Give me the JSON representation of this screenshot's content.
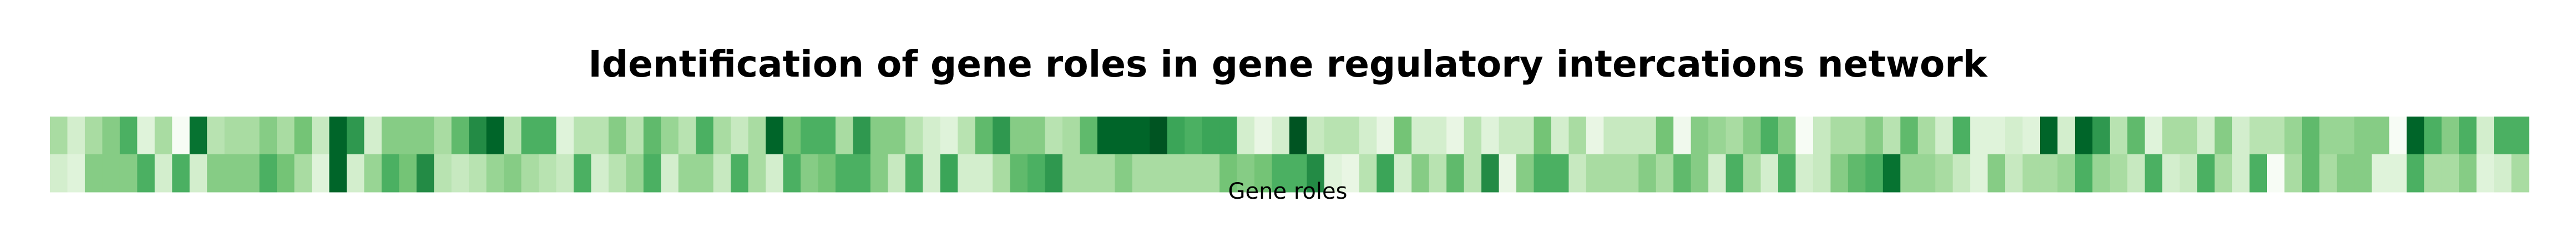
{
  "chart_data": {
    "type": "heatmap",
    "title": "Identification of gene roles in gene regulatory intercations network",
    "xlabel": "Gene roles",
    "ylabel": "",
    "colormap": "Greens",
    "grid": false,
    "legend": "none",
    "value_range": [
      0,
      1
    ],
    "rows": [
      [
        0.35,
        0.2,
        0.35,
        0.45,
        0.6,
        0.15,
        0.35,
        0.0,
        0.85,
        0.3,
        0.35,
        0.35,
        0.45,
        0.35,
        0.5,
        0.25,
        0.9,
        0.7,
        0.2,
        0.45,
        0.45,
        0.45,
        0.35,
        0.55,
        0.75,
        0.9,
        0.3,
        0.6,
        0.6,
        0.15,
        0.3,
        0.3,
        0.45,
        0.3,
        0.55,
        0.4,
        0.3,
        0.6,
        0.35,
        0.25,
        0.35,
        0.9,
        0.5,
        0.6,
        0.6,
        0.35,
        0.7,
        0.45,
        0.45,
        0.3,
        0.2,
        0.15,
        0.3,
        0.55,
        0.7,
        0.45,
        0.45,
        0.3,
        0.35,
        0.55,
        0.9,
        0.9,
        0.9,
        0.95,
        0.65,
        0.6,
        0.65,
        0.65,
        0.2,
        0.1,
        0.2,
        0.95,
        0.25,
        0.3,
        0.3,
        0.2,
        0.1,
        0.5,
        0.2,
        0.2,
        0.1,
        0.3,
        0.15,
        0.25,
        0.25,
        0.5,
        0.2,
        0.35,
        0.1,
        0.25,
        0.25,
        0.25,
        0.5,
        0.05,
        0.45,
        0.4,
        0.35,
        0.45,
        0.6,
        0.45,
        0.0,
        0.25,
        0.35,
        0.35,
        0.45,
        0.3,
        0.55,
        0.35,
        0.2,
        0.6,
        0.15,
        0.15,
        0.2,
        0.15,
        0.9,
        0.2,
        0.9,
        0.7,
        0.3,
        0.55,
        0.15,
        0.35,
        0.35,
        0.2,
        0.45,
        0.2,
        0.3,
        0.3,
        0.4,
        0.55,
        0.4,
        0.4,
        0.45,
        0.45,
        0.0,
        0.9,
        0.6,
        0.45,
        0.6,
        0.2,
        0.6,
        0.6
      ],
      [
        0.2,
        0.15,
        0.45,
        0.45,
        0.45,
        0.6,
        0.2,
        0.6,
        0.2,
        0.45,
        0.45,
        0.45,
        0.6,
        0.5,
        0.35,
        0.15,
        0.9,
        0.2,
        0.4,
        0.6,
        0.5,
        0.75,
        0.3,
        0.25,
        0.3,
        0.4,
        0.45,
        0.35,
        0.3,
        0.25,
        0.6,
        0.2,
        0.3,
        0.4,
        0.6,
        0.2,
        0.4,
        0.4,
        0.25,
        0.6,
        0.35,
        0.2,
        0.6,
        0.45,
        0.5,
        0.6,
        0.6,
        0.45,
        0.25,
        0.6,
        0.2,
        0.65,
        0.2,
        0.2,
        0.35,
        0.55,
        0.6,
        0.7,
        0.35,
        0.35,
        0.35,
        0.45,
        0.35,
        0.35,
        0.35,
        0.35,
        0.35,
        0.5,
        0.45,
        0.5,
        0.6,
        0.6,
        0.75,
        0.15,
        0.1,
        0.3,
        0.65,
        0.2,
        0.45,
        0.3,
        0.55,
        0.3,
        0.75,
        0.1,
        0.45,
        0.6,
        0.6,
        0.25,
        0.35,
        0.35,
        0.35,
        0.45,
        0.35,
        0.55,
        0.45,
        0.2,
        0.6,
        0.35,
        0.2,
        0.6,
        0.2,
        0.25,
        0.45,
        0.55,
        0.6,
        0.85,
        0.4,
        0.4,
        0.35,
        0.25,
        0.15,
        0.45,
        0.25,
        0.35,
        0.35,
        0.4,
        0.6,
        0.4,
        0.35,
        0.25,
        0.6,
        0.2,
        0.25,
        0.6,
        0.35,
        0.2,
        0.6,
        0.0,
        0.35,
        0.55,
        0.35,
        0.45,
        0.45,
        0.15,
        0.15,
        0.6,
        0.35,
        0.35,
        0.45,
        0.15,
        0.2,
        0.35
      ]
    ]
  }
}
